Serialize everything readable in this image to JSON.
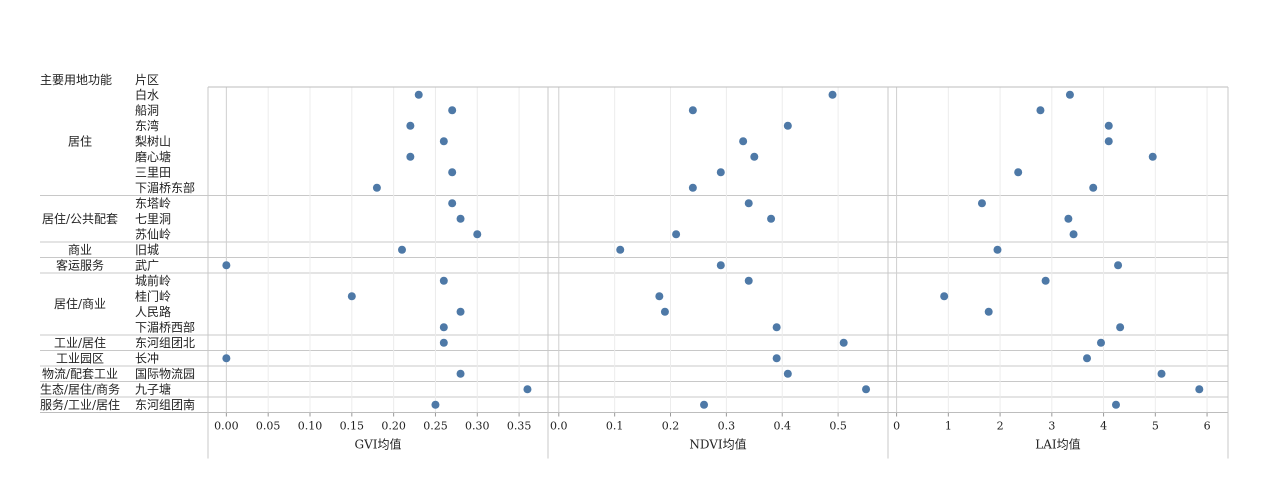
{
  "headers": {
    "function": "主要用地功能",
    "district": "片区"
  },
  "chart_data": {
    "type": "scatter",
    "groups": [
      {
        "name": "居住",
        "districts": [
          "白水",
          "船洞",
          "东湾",
          "梨树山",
          "磨心塘",
          "三里田",
          "下湄桥东部"
        ]
      },
      {
        "name": "居住/公共配套",
        "districts": [
          "东塔岭",
          "七里洞",
          "苏仙岭"
        ]
      },
      {
        "name": "商业",
        "districts": [
          "旧城"
        ]
      },
      {
        "name": "客运服务",
        "districts": [
          "武广"
        ]
      },
      {
        "name": "居住/商业",
        "districts": [
          "城前岭",
          "桂门岭",
          "人民路",
          "下湄桥西部"
        ]
      },
      {
        "name": "工业/居住",
        "districts": [
          "东河组团北"
        ]
      },
      {
        "name": "工业园区",
        "districts": [
          "长冲"
        ]
      },
      {
        "name": "物流/配套工业",
        "districts": [
          "国际物流园"
        ]
      },
      {
        "name": "生态/居住/商务",
        "districts": [
          "九子塘"
        ]
      },
      {
        "name": "服务/工业/居住",
        "districts": [
          "东河组团南"
        ]
      }
    ],
    "panels": [
      {
        "xlabel": "GVI均值",
        "xlim": [
          -0.01,
          0.375
        ],
        "ticks": [
          0,
          0.05,
          0.1,
          0.15,
          0.2,
          0.25,
          0.3,
          0.35
        ],
        "tick_labels": [
          "0.00",
          "0.05",
          "0.10",
          "0.15",
          "0.20",
          "0.25",
          "0.30",
          "0.35"
        ],
        "values": [
          0.23,
          0.27,
          0.22,
          0.26,
          0.22,
          0.27,
          0.18,
          0.27,
          0.28,
          0.3,
          0.21,
          0.0,
          0.26,
          0.15,
          0.28,
          0.26,
          0.26,
          0.0,
          0.28,
          0.36,
          0.25
        ]
      },
      {
        "xlabel": "NDVI均值",
        "xlim": [
          -0.005,
          0.575
        ],
        "ticks": [
          0,
          0.1,
          0.2,
          0.3,
          0.4,
          0.5
        ],
        "tick_labels": [
          "0.0",
          "0.1",
          "0.2",
          "0.3",
          "0.4",
          "0.5"
        ],
        "values": [
          0.49,
          0.24,
          0.41,
          0.33,
          0.35,
          0.29,
          0.24,
          0.34,
          0.38,
          0.21,
          0.11,
          0.29,
          0.34,
          0.18,
          0.19,
          0.39,
          0.51,
          0.39,
          0.41,
          0.55,
          0.26
        ]
      },
      {
        "xlabel": "LAI均值",
        "xlim": [
          -0.05,
          6.25
        ],
        "ticks": [
          0,
          1,
          2,
          3,
          4,
          5,
          6
        ],
        "tick_labels": [
          "0",
          "1",
          "2",
          "3",
          "4",
          "5",
          "6"
        ],
        "values": [
          3.35,
          2.78,
          4.1,
          4.1,
          4.95,
          2.35,
          3.8,
          1.65,
          3.32,
          3.42,
          1.95,
          4.28,
          2.88,
          0.92,
          1.78,
          4.32,
          3.95,
          3.68,
          5.12,
          5.85,
          4.24
        ]
      }
    ],
    "grid": true,
    "marker_color": "#4e79a7"
  }
}
